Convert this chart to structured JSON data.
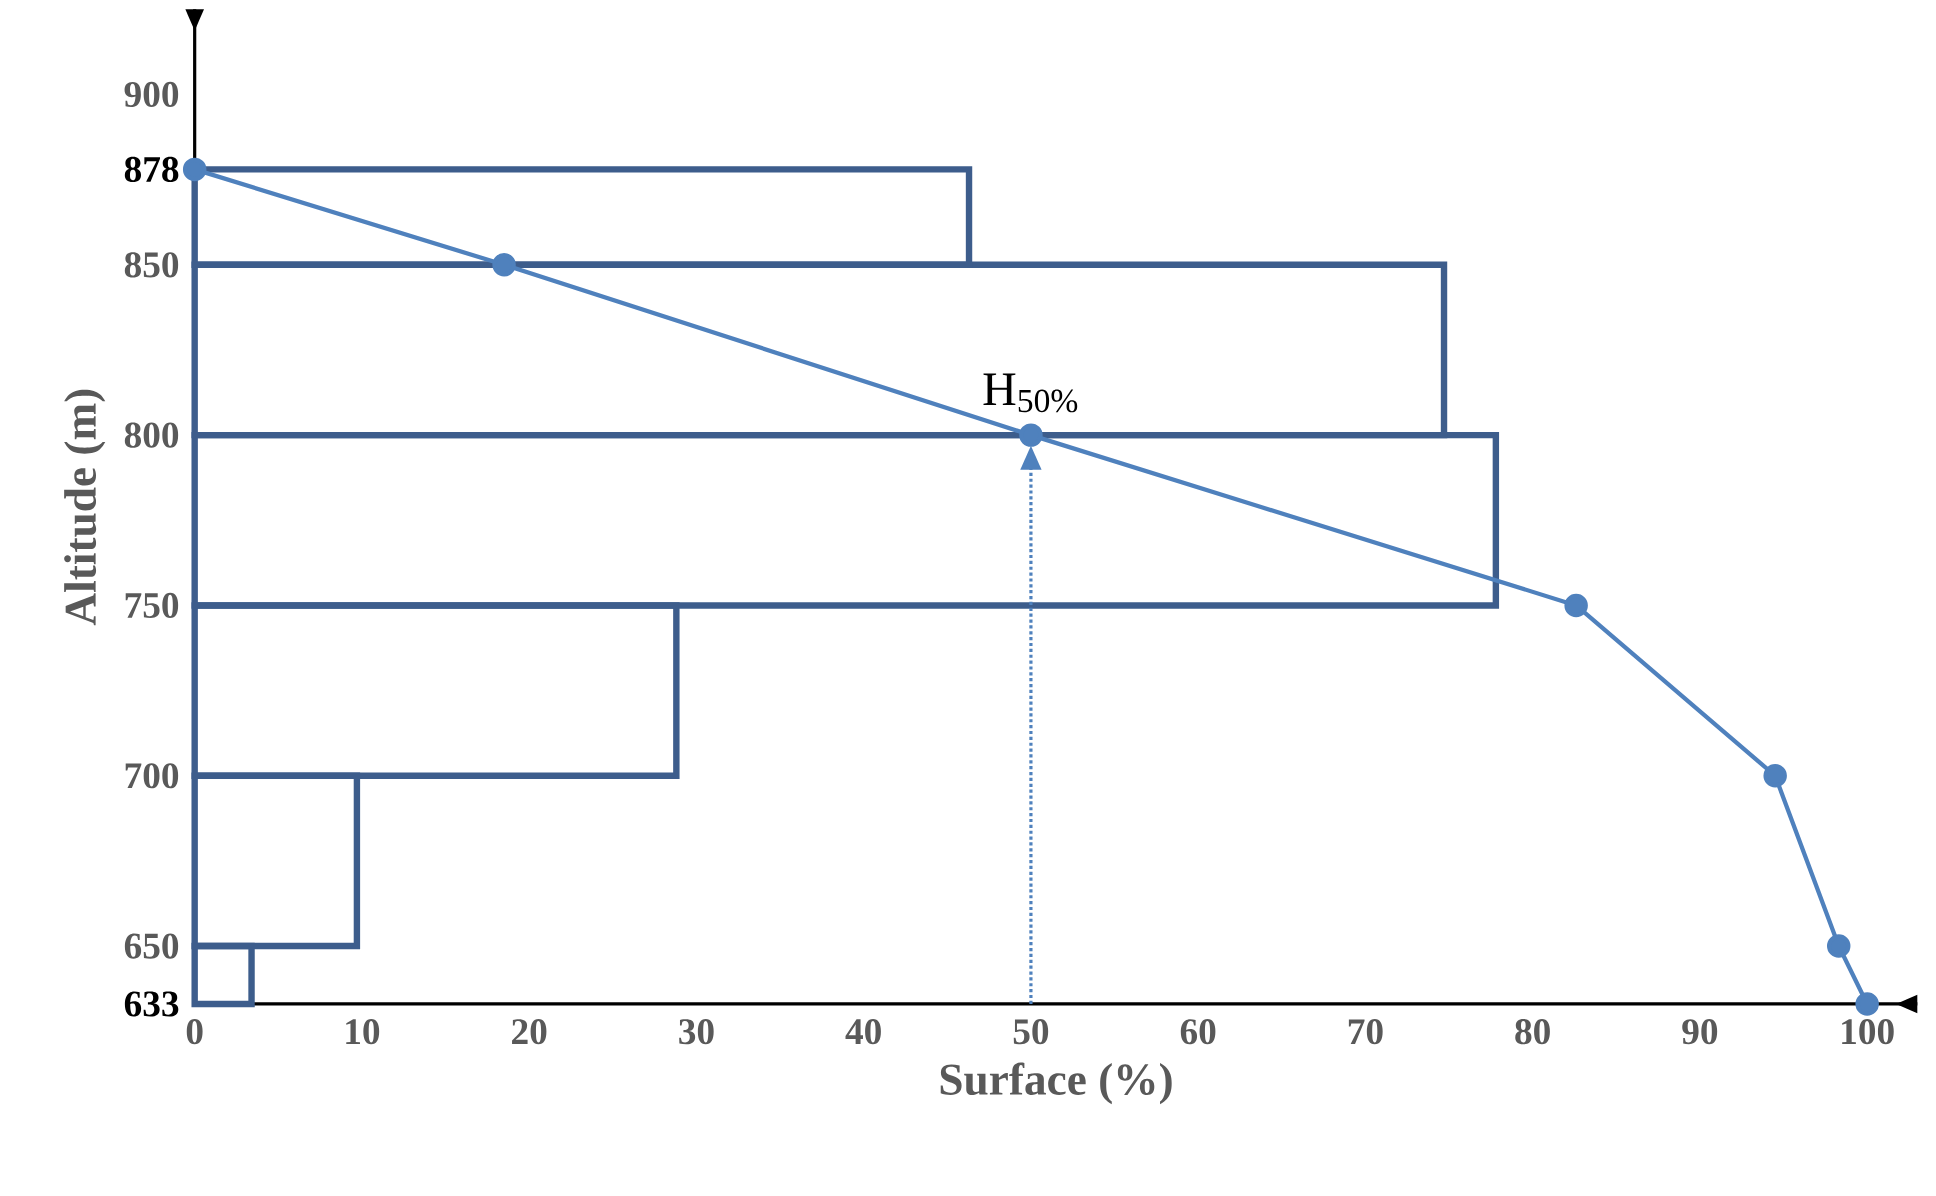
{
  "chart_data": {
    "type": "histogram",
    "orientation": "horizontal",
    "xlabel": "Surface  (%)",
    "ylabel": "Altitude (m)",
    "xlim": [
      0,
      103
    ],
    "ylim": [
      633,
      925
    ],
    "xticks": [
      0,
      10,
      20,
      30,
      40,
      50,
      60,
      70,
      80,
      90,
      100
    ],
    "yticks": [
      {
        "value": 633,
        "label": "633"
      },
      650,
      700,
      750,
      800,
      850,
      {
        "value": 878,
        "label": "878"
      },
      900
    ],
    "color": "#3d5d8c",
    "bins": [
      633,
      650,
      700,
      750,
      800,
      850,
      878
    ],
    "values": [
      3.4,
      9.7,
      28.8,
      77.8,
      74.7,
      46.3
    ],
    "series": [
      {
        "type": "line",
        "color": "#4f81bd",
        "marker": "circle",
        "x": [
          878,
          850,
          800,
          750,
          700,
          650,
          633
        ],
        "values": [
          0,
          18.5,
          50,
          82.6,
          94.5,
          98.3,
          100
        ]
      }
    ],
    "ref_lines": [
      {
        "axis": "x",
        "value": 50,
        "color": "#4f81bd",
        "line_style": "dotted"
      }
    ],
    "annotations": [
      {
        "text": "H$_{50%}$",
        "x": 50,
        "y": 800
      }
    ]
  }
}
